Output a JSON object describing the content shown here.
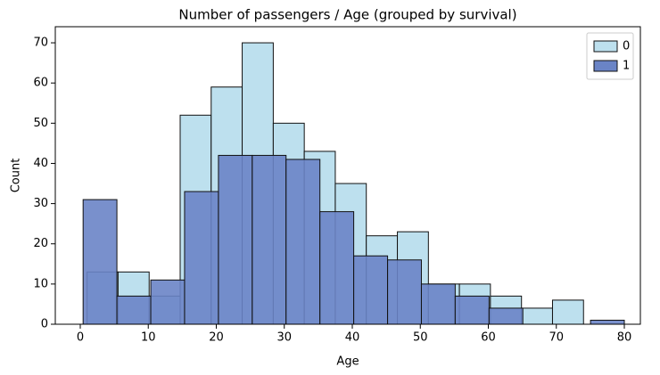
{
  "chart_data": {
    "type": "histogram",
    "title": "Number of passengers / Age (grouped by survival)",
    "x_label": "Age",
    "y_label": "Count",
    "series": [
      {
        "name": "0",
        "color": "#bde0ee",
        "bins": [
          1,
          5.56,
          10.13,
          14.69,
          19.25,
          23.81,
          28.38,
          32.94,
          37.5,
          42.06,
          46.63,
          51.19,
          55.75,
          60.31,
          64.88,
          69.44,
          74
        ],
        "values": [
          13,
          13,
          7,
          52,
          59,
          70,
          50,
          43,
          35,
          22,
          23,
          10,
          10,
          7,
          4,
          6
        ]
      },
      {
        "name": "1",
        "color": "#6a84c6",
        "bins": [
          0.42,
          5.39,
          10.37,
          15.34,
          20.32,
          25.29,
          30.26,
          35.24,
          40.21,
          45.19,
          50.16,
          55.13,
          60.11,
          65.08,
          70.06,
          75.03,
          80
        ],
        "values": [
          31,
          7,
          11,
          33,
          42,
          42,
          41,
          28,
          17,
          16,
          10,
          7,
          4,
          0,
          0,
          1
        ]
      }
    ],
    "xlim": [
      -3.67,
      82.36
    ],
    "ylim": [
      0,
      74
    ],
    "xticks": [
      0,
      10,
      20,
      30,
      40,
      50,
      60,
      70,
      80
    ],
    "yticks": [
      0,
      10,
      20,
      30,
      40,
      50,
      60,
      70
    ],
    "legend": "upper right"
  }
}
